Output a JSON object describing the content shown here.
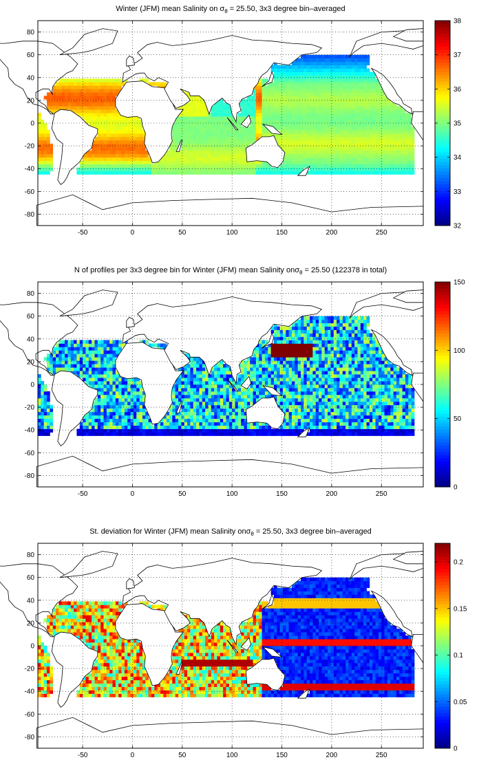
{
  "panels": [
    {
      "title_prefix": "Winter (JFM) mean Salinity on ",
      "sigma": "σ",
      "sigma_sub": "θ",
      "title_suffix": " = 25.50, 3x3 degree bin–averaged",
      "colorbar": {
        "min": 32,
        "max": 38,
        "ticks": [
          "32",
          "33",
          "34",
          "35",
          "36",
          "37",
          "38"
        ]
      }
    },
    {
      "title_prefix": "N of profiles per 3x3 degree bin for Winter (JFM) mean Salinity on",
      "sigma": "σ",
      "sigma_sub": "θ",
      "title_suffix": " = 25.50 (122378 in total)",
      "colorbar": {
        "min": 0,
        "max": 150,
        "ticks": [
          "0",
          "50",
          "100",
          "150"
        ]
      }
    },
    {
      "title_prefix": "St. deviation for Winter (JFM) mean Salinity on",
      "sigma": "σ",
      "sigma_sub": "θ",
      "title_suffix": " = 25.50, 3x3 degree bin–averaged",
      "colorbar": {
        "min": 0,
        "max": 0.22,
        "ticks": [
          "0",
          "0.05",
          "0.1",
          "0.15",
          "0.2"
        ]
      }
    }
  ],
  "axes": {
    "xlim": [
      -95,
      292
    ],
    "ylim": [
      -90,
      90
    ],
    "xticks": [
      "-50",
      "0",
      "50",
      "100",
      "150",
      "200",
      "250"
    ],
    "yticks": [
      "80",
      "60",
      "40",
      "20",
      "0",
      "-20",
      "-40",
      "-60",
      "-80"
    ],
    "grid": "dotted"
  },
  "colormap": "jet"
}
